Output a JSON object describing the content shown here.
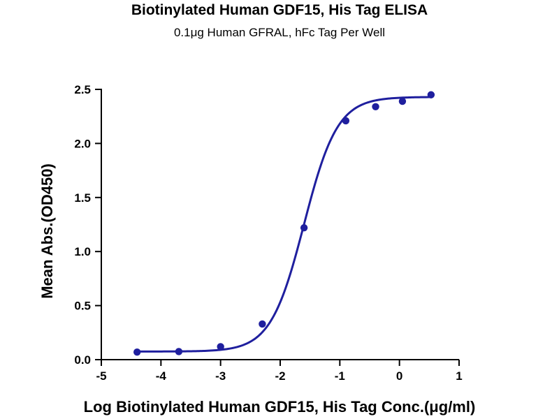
{
  "chart_data": {
    "type": "scatter",
    "title": "Biotinylated Human GDF15, His Tag ELISA",
    "subtitle": "0.1μg Human GFRAL, hFc Tag Per Well",
    "xlabel": "Log Biotinylated Human GDF15, His Tag Conc.(μg/ml)",
    "ylabel": "Mean Abs.(OD450)",
    "xlim": [
      -5,
      1
    ],
    "ylim": [
      0,
      2.5
    ],
    "x_ticks": [
      "-5",
      "-4",
      "-3",
      "-2",
      "-1",
      "0",
      "1"
    ],
    "y_ticks": [
      "0.0",
      "0.5",
      "1.0",
      "1.5",
      "2.0",
      "2.5"
    ],
    "grid": false,
    "series": [
      {
        "color": "#1f1f9e",
        "x": [
          -4.4,
          -3.7,
          -3.0,
          -2.3,
          -1.6,
          -0.9,
          -0.4,
          0.05,
          0.53
        ],
        "y": [
          0.07,
          0.075,
          0.12,
          0.33,
          1.22,
          2.21,
          2.34,
          2.39,
          2.45
        ]
      }
    ],
    "fit_curve": {
      "model": "4PL",
      "bottom": 0.075,
      "top": 2.43,
      "log_ec50": -1.6,
      "hill_slope": 1.55,
      "color": "#1f1f9e"
    }
  }
}
